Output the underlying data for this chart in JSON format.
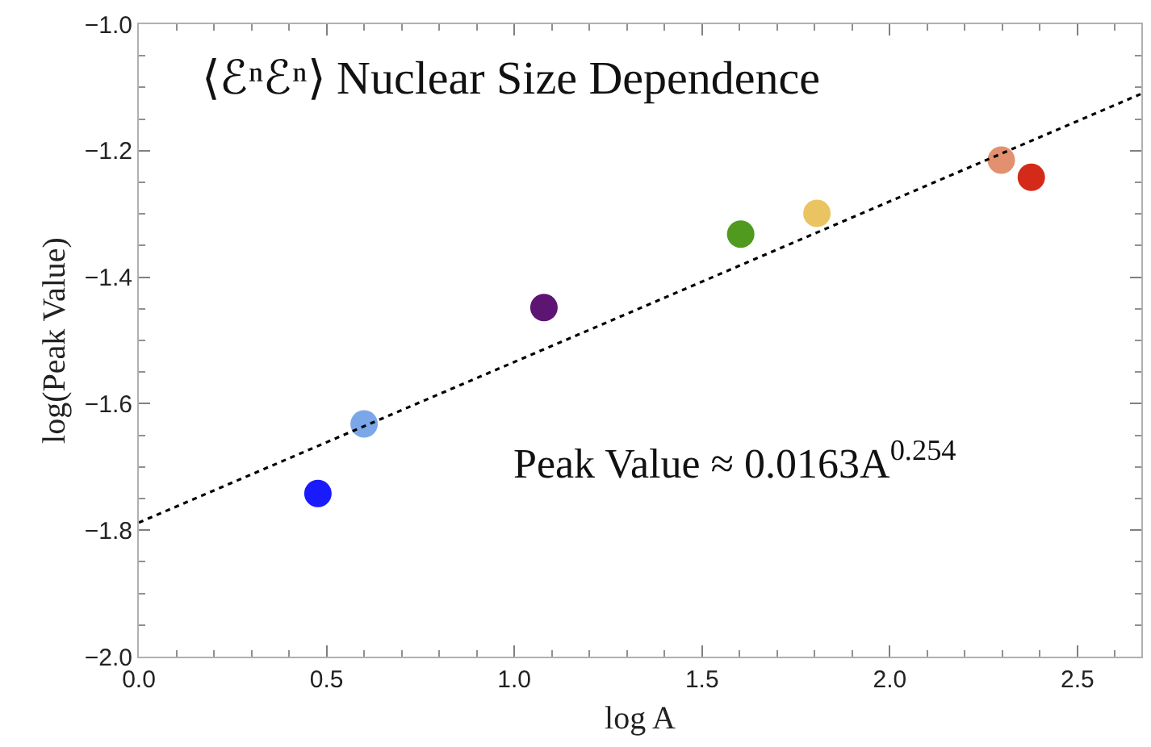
{
  "chart_data": {
    "type": "scatter",
    "title": "⟨ℰⁿℰⁿ⟩ Nuclear Size Dependence",
    "xlabel": "log A",
    "ylabel": "log(Peak Value)",
    "annotations": [
      "Peak Value ≈ 0.0163A$^{0.254}$"
    ],
    "x": [
      0.477,
      0.6,
      1.079,
      1.603,
      1.806,
      2.297,
      2.377
    ],
    "series": [
      {
        "colors": [
          "#1a1aff",
          "#7ba7e8",
          "#5e1473",
          "#4f9a1f",
          "#ebc462",
          "#e39070",
          "#d42a1a"
        ],
        "values": [
          -1.742,
          -1.632,
          -1.448,
          -1.332,
          -1.299,
          -1.215,
          -1.242
        ]
      },
      {
        "type": "line",
        "x": [
          0,
          2.67
        ],
        "values": [
          -1.788,
          -1.11
        ],
        "color": "#000000",
        "line_style": "dotted",
        "marker": "none"
      }
    ],
    "marker": "circle",
    "xlim": [
      0,
      2.67
    ],
    "xticks": [
      {
        "value": 0,
        "label": "0.0"
      },
      0.5,
      {
        "value": 1,
        "label": "1.0"
      },
      1.5,
      {
        "value": 2,
        "label": "2.0"
      },
      2.5
    ],
    "ylim": [
      -2.0,
      -1.0
    ],
    "yticks": [
      {
        "value": -2,
        "label": "−2.0"
      },
      {
        "value": -1.8,
        "label": "−1.8"
      },
      {
        "value": -1.6,
        "label": "−1.6"
      },
      {
        "value": -1.4,
        "label": "−1.4"
      },
      {
        "value": -1.2,
        "label": "−1.2"
      },
      {
        "value": -1,
        "label": "−1.0"
      }
    ]
  }
}
